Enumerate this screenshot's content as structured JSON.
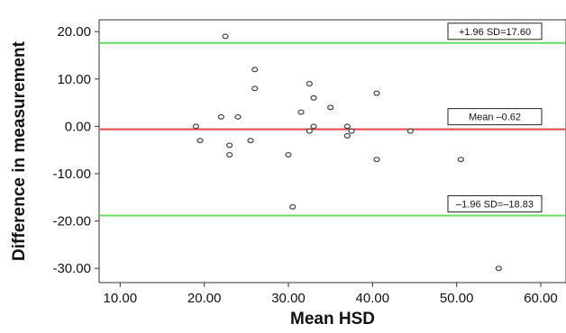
{
  "chart_data": {
    "type": "scatter",
    "xlabel": "Mean HSD",
    "ylabel": "Difference in measurement",
    "xlim": [
      7.5,
      63.0
    ],
    "ylim": [
      -33.0,
      22.5
    ],
    "x_ticks": [
      "10.00",
      "20.00",
      "30.00",
      "40.00",
      "50.00",
      "60.00"
    ],
    "y_ticks": [
      "20.00",
      "10.00",
      "0.00",
      "-10.00",
      "-20.00",
      "-30.00"
    ],
    "grid": false,
    "points": [
      {
        "x": 19.0,
        "y": 0.0
      },
      {
        "x": 19.5,
        "y": -3.0
      },
      {
        "x": 22.0,
        "y": 2.0
      },
      {
        "x": 22.5,
        "y": 19.0
      },
      {
        "x": 23.0,
        "y": -4.0
      },
      {
        "x": 23.0,
        "y": -6.0
      },
      {
        "x": 24.0,
        "y": 2.0
      },
      {
        "x": 25.5,
        "y": -3.0
      },
      {
        "x": 26.0,
        "y": 12.0
      },
      {
        "x": 26.0,
        "y": 8.0
      },
      {
        "x": 30.0,
        "y": -6.0
      },
      {
        "x": 30.5,
        "y": -17.0
      },
      {
        "x": 31.5,
        "y": 3.0
      },
      {
        "x": 32.5,
        "y": 9.0
      },
      {
        "x": 32.5,
        "y": -1.0
      },
      {
        "x": 33.0,
        "y": 6.0
      },
      {
        "x": 33.0,
        "y": 0.0
      },
      {
        "x": 35.0,
        "y": 4.0
      },
      {
        "x": 37.0,
        "y": 0.0
      },
      {
        "x": 37.0,
        "y": -2.0
      },
      {
        "x": 37.5,
        "y": -1.0
      },
      {
        "x": 40.5,
        "y": 7.0
      },
      {
        "x": 40.5,
        "y": -7.0
      },
      {
        "x": 44.5,
        "y": -1.0
      },
      {
        "x": 50.5,
        "y": -7.0
      },
      {
        "x": 55.0,
        "y": -30.0
      }
    ],
    "reference_lines": [
      {
        "label": "+1.96 SD=17.60",
        "y": 17.6,
        "color": "#66dd66"
      },
      {
        "label": "Mean –0.62",
        "y": -0.62,
        "color": "#e84040"
      },
      {
        "label": "–1.96 SD=–18.83",
        "y": -18.83,
        "color": "#66dd66"
      }
    ]
  }
}
